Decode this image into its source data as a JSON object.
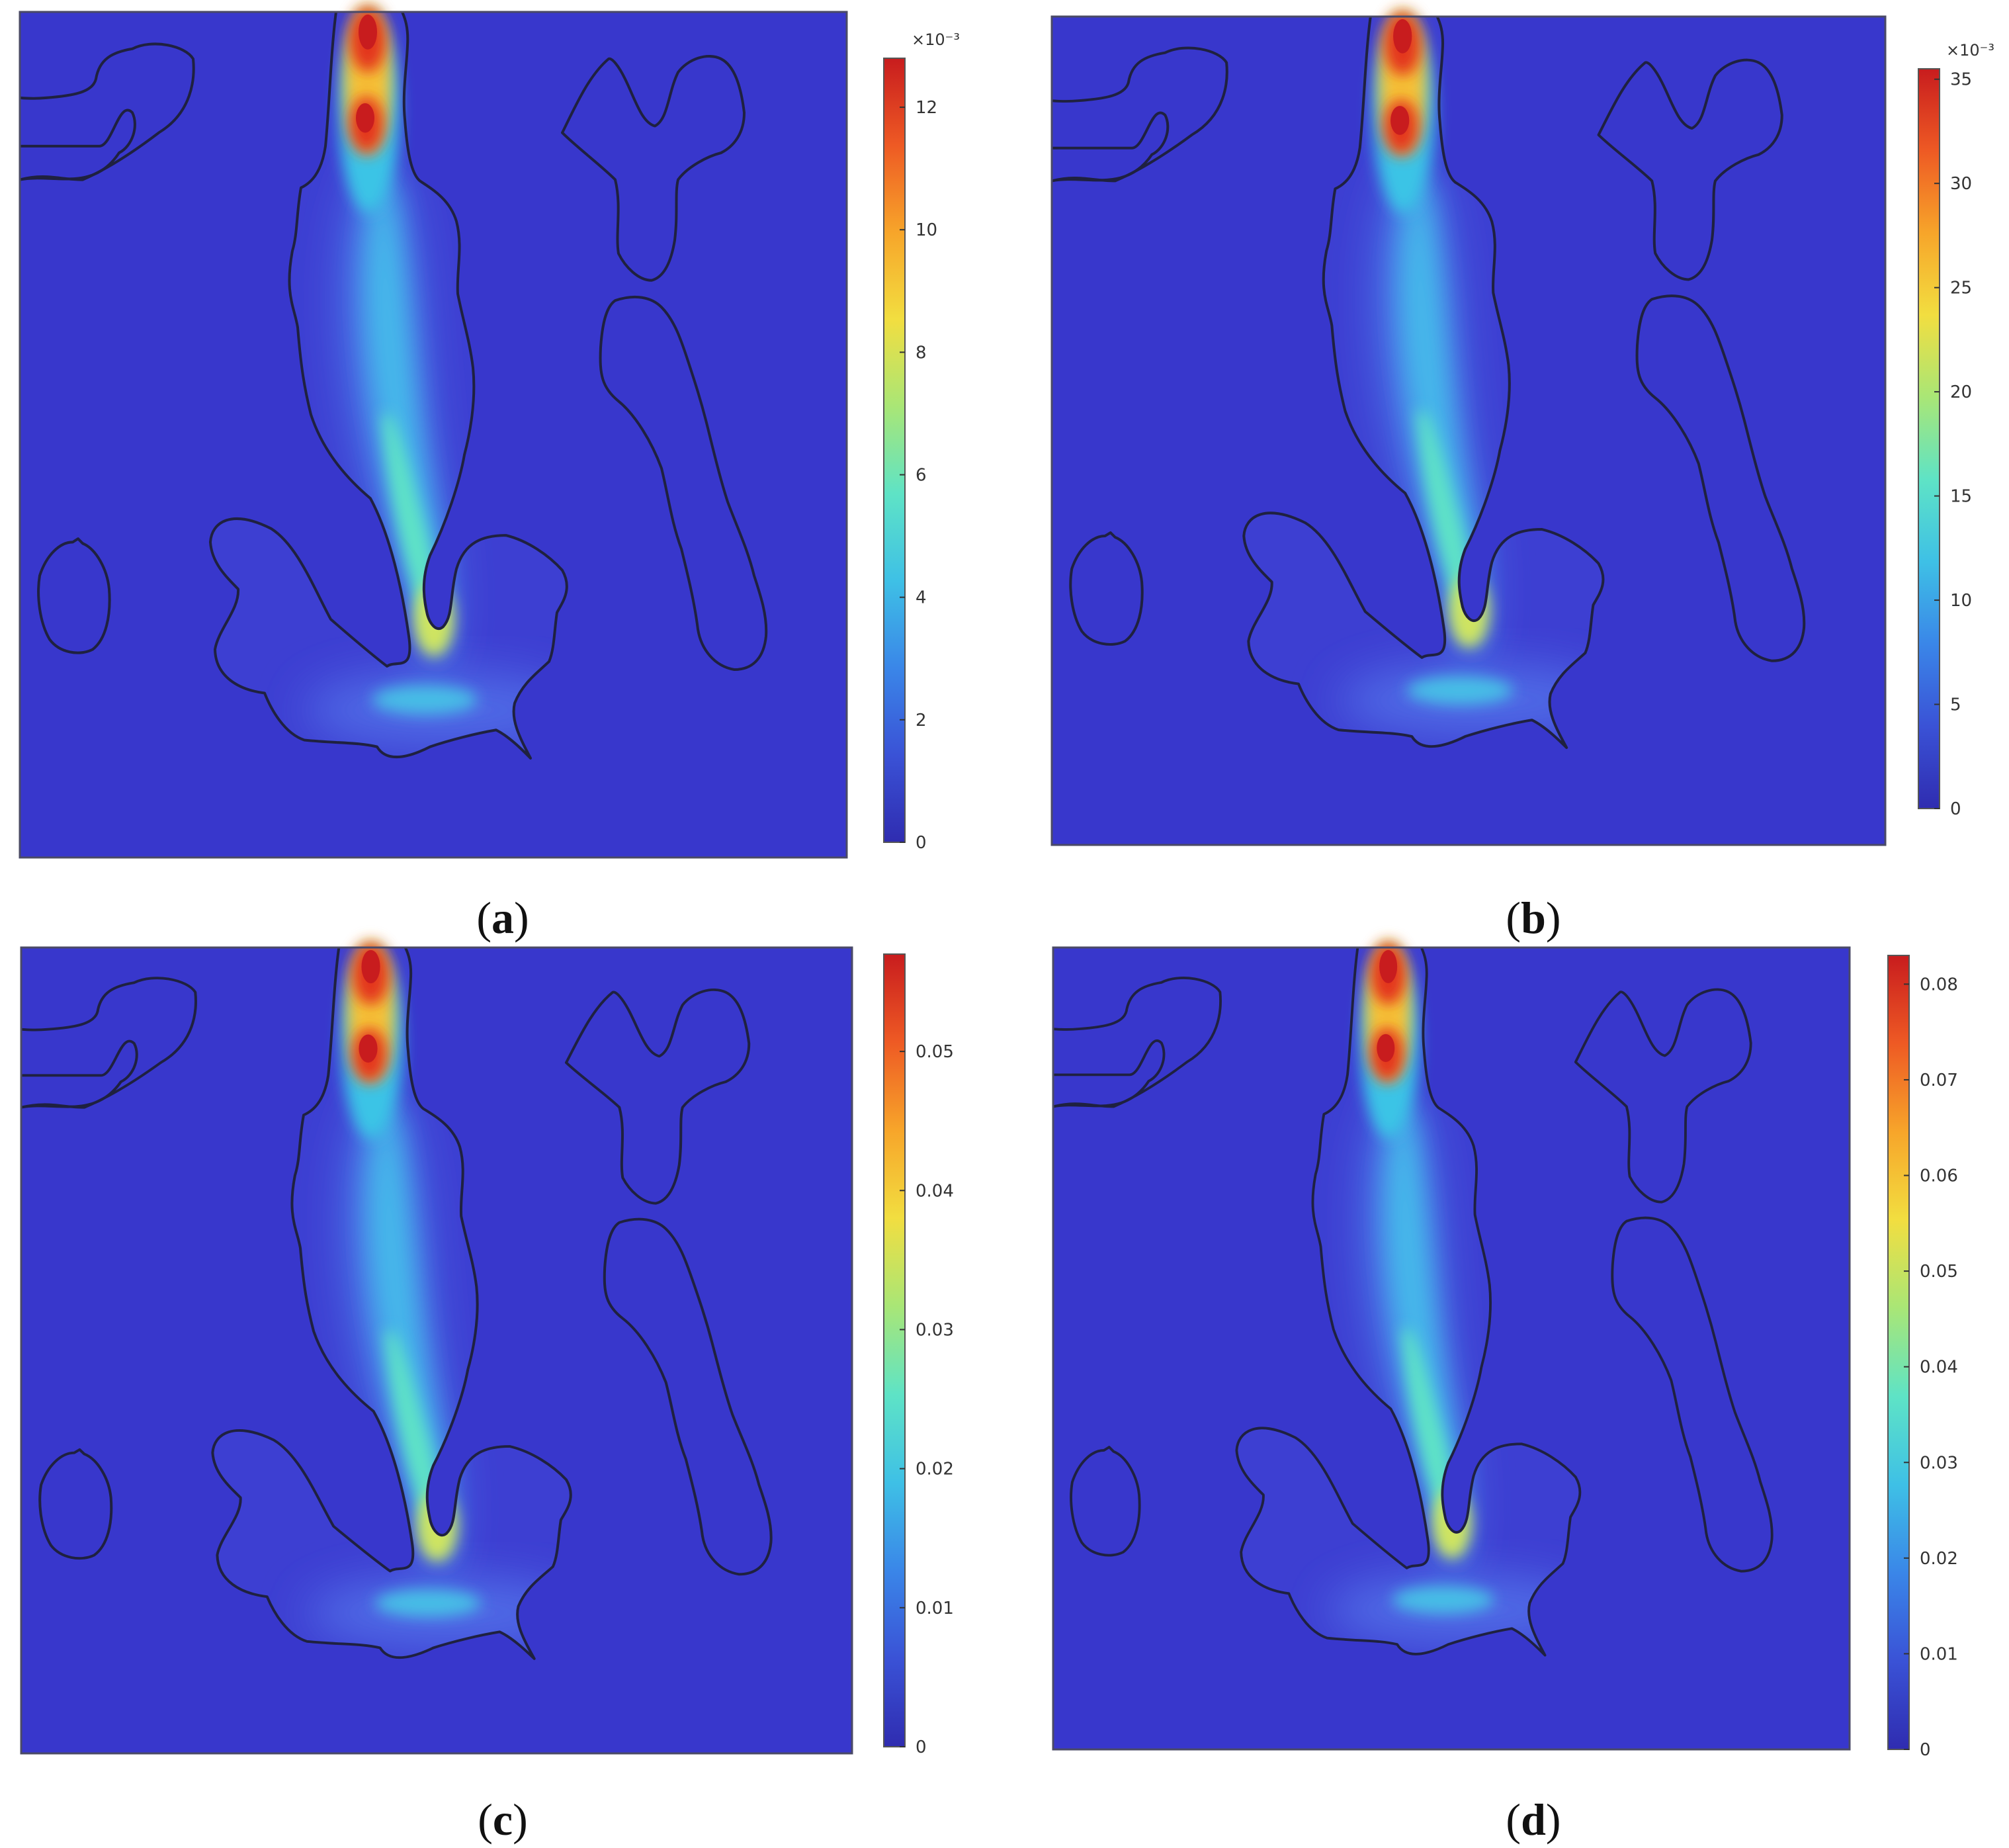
{
  "colormap": [
    "#2f2cb0",
    "#3a52d6",
    "#3a86e8",
    "#3ec0e6",
    "#5ee3c6",
    "#a9e676",
    "#f2de40",
    "#f7a52a",
    "#ee5a24",
    "#c81c1e"
  ],
  "background_color": "#3b39cf",
  "outline_color": "#1f2140",
  "panels": [
    {
      "id": "a",
      "caption_open": "(",
      "caption_letter": "a",
      "caption_close": ")",
      "colorbar": {
        "exponent": "×10⁻³",
        "ticks": [
          "0",
          "2",
          "4",
          "6",
          "8",
          "10",
          "12"
        ],
        "min": 0,
        "max": 12.8
      }
    },
    {
      "id": "b",
      "caption_open": "(",
      "caption_letter": "b",
      "caption_close": ")",
      "colorbar": {
        "exponent": "×10⁻³",
        "ticks": [
          "0",
          "5",
          "10",
          "15",
          "20",
          "25",
          "30",
          "35"
        ],
        "min": 0,
        "max": 35.5
      }
    },
    {
      "id": "c",
      "caption_open": "(",
      "caption_letter": "c",
      "caption_close": ")",
      "colorbar": {
        "exponent": "",
        "ticks": [
          "0",
          "0.01",
          "0.02",
          "0.03",
          "0.04",
          "0.05"
        ],
        "min": 0,
        "max": 0.057
      }
    },
    {
      "id": "d",
      "caption_open": "(",
      "caption_letter": "d",
      "caption_close": ")",
      "colorbar": {
        "exponent": "",
        "ticks": [
          "0",
          "0.01",
          "0.02",
          "0.03",
          "0.04",
          "0.05",
          "0.06",
          "0.07",
          "0.08"
        ],
        "min": 0,
        "max": 0.083
      }
    }
  ]
}
